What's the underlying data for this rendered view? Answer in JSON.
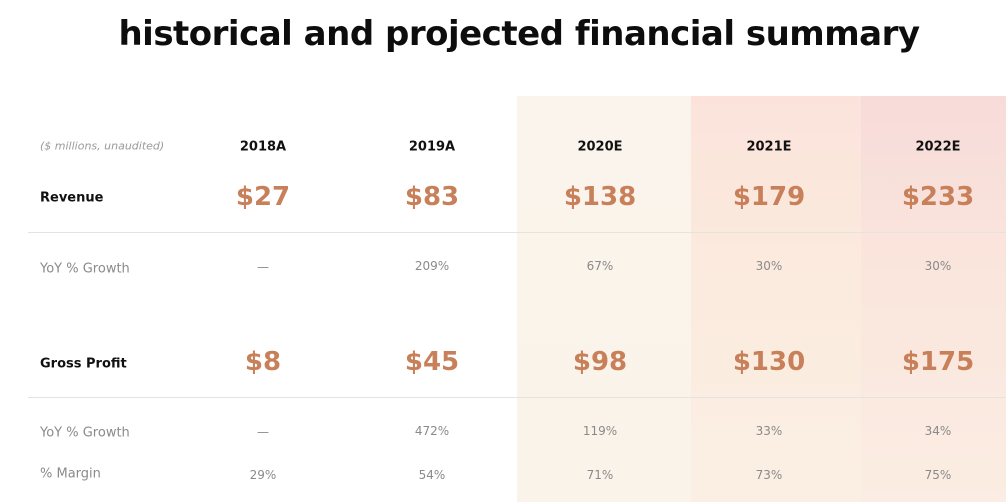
{
  "title": "historical and projected financial summary",
  "units_note": "($ millions, unaudited)",
  "colors": {
    "accent": "#c8805a",
    "muted": "#8a8a8a",
    "projection_tint": "#fbe6dc"
  },
  "years": [
    "2018A",
    "2019A",
    "2020E",
    "2021E",
    "2022E"
  ],
  "rows": {
    "revenue": {
      "label": "Revenue",
      "values": [
        "$27",
        "$83",
        "$138",
        "$179",
        "$233"
      ]
    },
    "revenue_growth": {
      "label": "YoY % Growth",
      "values": [
        "—",
        "209%",
        "67%",
        "30%",
        "30%"
      ]
    },
    "gross_profit": {
      "label": "Gross Profit",
      "values": [
        "$8",
        "$45",
        "$98",
        "$130",
        "$175"
      ]
    },
    "gp_growth": {
      "label": "YoY % Growth",
      "values": [
        "—",
        "472%",
        "119%",
        "33%",
        "34%"
      ]
    },
    "margin": {
      "label": "% Margin",
      "values": [
        "29%",
        "54%",
        "71%",
        "73%",
        "75%"
      ]
    }
  }
}
